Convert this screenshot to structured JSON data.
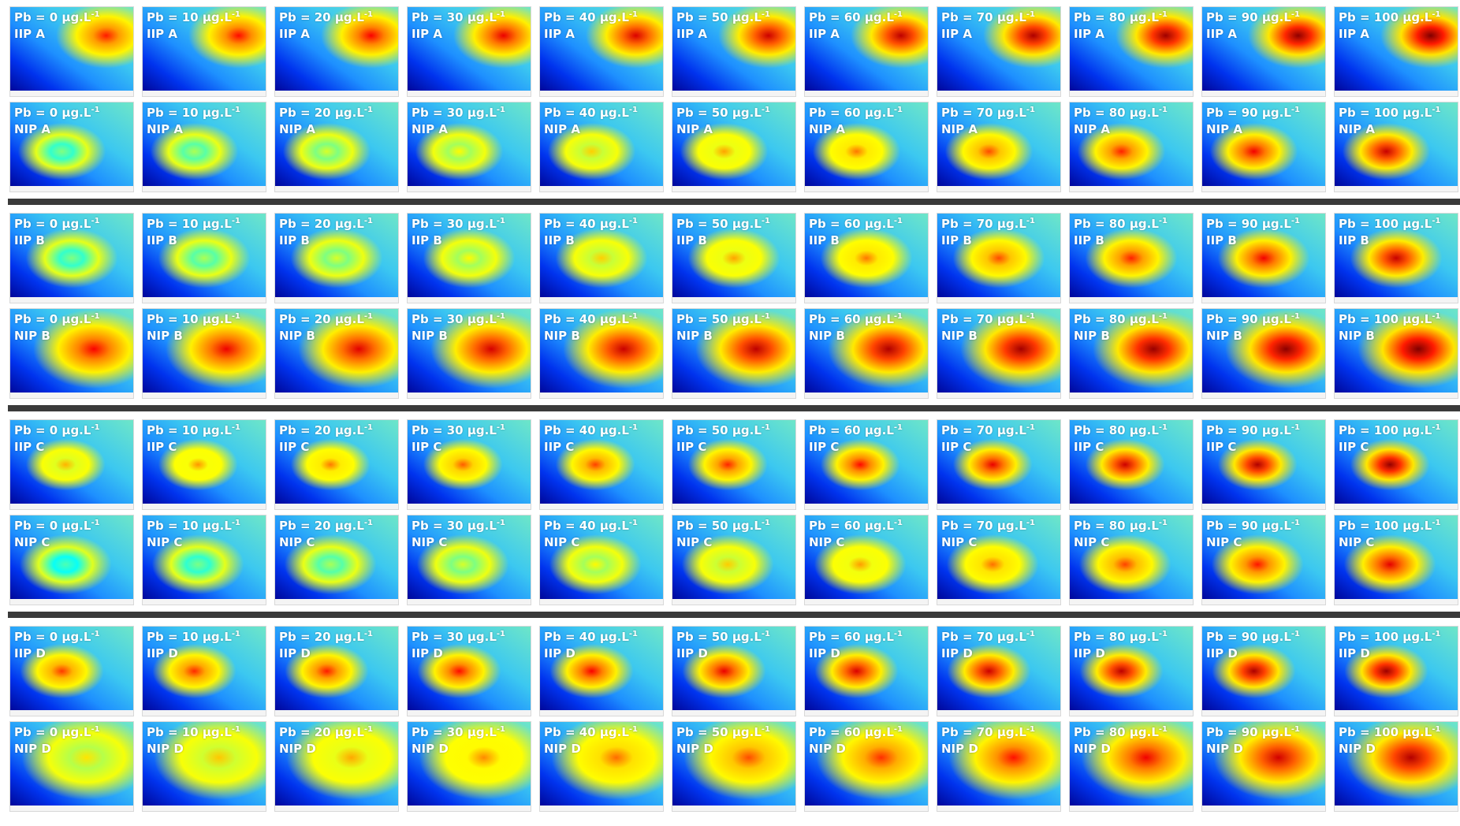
{
  "concentration_labels": [
    "Pb = 0 μg.L",
    "Pb = 10 μg.L",
    "Pb = 20 μg.L",
    "Pb = 30 μg.L",
    "Pb = 40 μg.L",
    "Pb = 50 μg.L",
    "Pb = 60 μg.L",
    "Pb = 70 μg.L",
    "Pb = 80 μg.L",
    "Pb = 90 μg.L",
    "Pb = 100 μg.L"
  ],
  "unit_superscript": "-1",
  "groups": [
    [
      "IIP A",
      "NIP A"
    ],
    [
      "IIP B",
      "NIP B"
    ],
    [
      "IIP C",
      "NIP C"
    ],
    [
      "IIP D",
      "NIP D"
    ]
  ]
}
